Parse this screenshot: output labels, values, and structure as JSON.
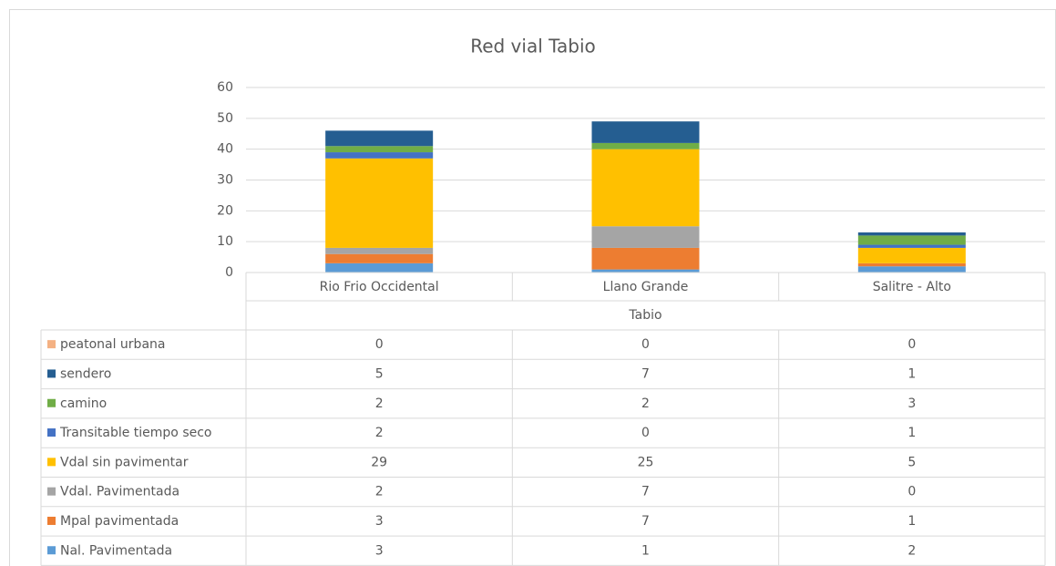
{
  "chart_data": {
    "type": "stacked_bar",
    "title": "Red vial Tabio",
    "categories": [
      "Rio Frio Occidental",
      "Llano Grande",
      "Salitre - Alto"
    ],
    "xlabel": "Tabio",
    "ylim": [
      0,
      60
    ],
    "yticks": [
      0,
      10,
      20,
      30,
      40,
      50,
      60
    ],
    "grid": true,
    "series": [
      {
        "name": "Nal. Pavimentada",
        "color": "#5b9bd5",
        "values": [
          3,
          1,
          2
        ]
      },
      {
        "name": "Mpal pavimentada",
        "color": "#ed7d31",
        "values": [
          3,
          7,
          1
        ]
      },
      {
        "name": "Vdal. Pavimentada",
        "color": "#a5a5a5",
        "values": [
          2,
          7,
          0
        ]
      },
      {
        "name": "Vdal sin pavimentar",
        "color": "#ffc000",
        "values": [
          29,
          25,
          5
        ]
      },
      {
        "name": "Transitable tiempo seco",
        "color": "#4472c4",
        "values": [
          2,
          0,
          1
        ]
      },
      {
        "name": "camino",
        "color": "#70ad47",
        "values": [
          2,
          2,
          3
        ]
      },
      {
        "name": "sendero",
        "color": "#255e91",
        "values": [
          5,
          7,
          1
        ]
      },
      {
        "name": "peatonal urbana",
        "color": "#f4b183",
        "values": [
          0,
          0,
          0
        ]
      }
    ]
  }
}
